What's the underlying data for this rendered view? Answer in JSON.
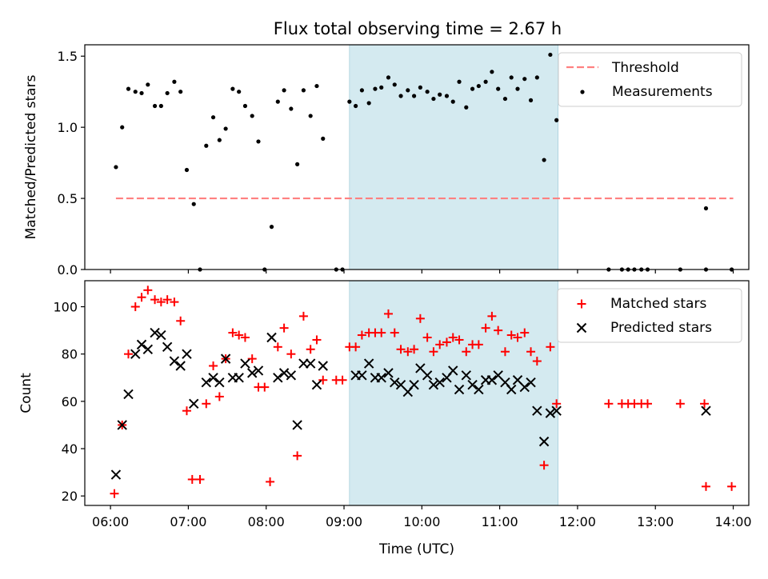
{
  "figure": {
    "title": "Flux total observing time = 2.67 h"
  },
  "chart_data": [
    {
      "type": "scatter",
      "panel": "top",
      "ylabel": "Matched/Predicted stars",
      "xlabel": "",
      "ylim": [
        0,
        1.58
      ],
      "xlim": [
        5.67,
        14.2
      ],
      "yticks": [
        0.0,
        0.5,
        1.0,
        1.5
      ],
      "ytick_labels": [
        "0.0",
        "0.5",
        "1.0",
        "1.5"
      ],
      "shaded_interval": {
        "start": 9.07,
        "end": 11.75,
        "color": "#d4eaf0"
      },
      "threshold": {
        "name": "Threshold",
        "value": 0.5,
        "x_start": 6.07,
        "x_end": 14.0,
        "color": "#ff8080"
      },
      "legend": {
        "placement": "top-right",
        "entries": [
          "Threshold",
          "Measurements"
        ]
      },
      "series": [
        {
          "name": "Measurements",
          "color": "#000000",
          "points": [
            [
              6.07,
              0.72
            ],
            [
              6.15,
              1.0
            ],
            [
              6.23,
              1.27
            ],
            [
              6.32,
              1.25
            ],
            [
              6.4,
              1.24
            ],
            [
              6.48,
              1.3
            ],
            [
              6.57,
              1.15
            ],
            [
              6.65,
              1.15
            ],
            [
              6.73,
              1.24
            ],
            [
              6.82,
              1.32
            ],
            [
              6.9,
              1.25
            ],
            [
              6.98,
              0.7
            ],
            [
              7.07,
              0.46
            ],
            [
              7.15,
              0.0
            ],
            [
              7.23,
              0.87
            ],
            [
              7.32,
              1.07
            ],
            [
              7.4,
              0.91
            ],
            [
              7.48,
              0.99
            ],
            [
              7.57,
              1.27
            ],
            [
              7.65,
              1.25
            ],
            [
              7.73,
              1.15
            ],
            [
              7.82,
              1.08
            ],
            [
              7.9,
              0.9
            ],
            [
              7.98,
              0.0
            ],
            [
              8.07,
              0.3
            ],
            [
              8.15,
              1.18
            ],
            [
              8.23,
              1.26
            ],
            [
              8.32,
              1.13
            ],
            [
              8.4,
              0.74
            ],
            [
              8.48,
              1.26
            ],
            [
              8.57,
              1.08
            ],
            [
              8.65,
              1.29
            ],
            [
              8.73,
              0.92
            ],
            [
              8.9,
              0.0
            ],
            [
              8.98,
              0.0
            ],
            [
              9.07,
              1.18
            ],
            [
              9.15,
              1.15
            ],
            [
              9.23,
              1.26
            ],
            [
              9.32,
              1.17
            ],
            [
              9.4,
              1.27
            ],
            [
              9.48,
              1.28
            ],
            [
              9.57,
              1.35
            ],
            [
              9.65,
              1.3
            ],
            [
              9.73,
              1.22
            ],
            [
              9.82,
              1.26
            ],
            [
              9.9,
              1.22
            ],
            [
              9.98,
              1.28
            ],
            [
              10.07,
              1.25
            ],
            [
              10.15,
              1.2
            ],
            [
              10.23,
              1.23
            ],
            [
              10.32,
              1.22
            ],
            [
              10.4,
              1.18
            ],
            [
              10.48,
              1.32
            ],
            [
              10.57,
              1.14
            ],
            [
              10.65,
              1.27
            ],
            [
              10.73,
              1.29
            ],
            [
              10.82,
              1.32
            ],
            [
              10.9,
              1.39
            ],
            [
              10.98,
              1.27
            ],
            [
              11.07,
              1.2
            ],
            [
              11.15,
              1.35
            ],
            [
              11.23,
              1.27
            ],
            [
              11.32,
              1.34
            ],
            [
              11.4,
              1.19
            ],
            [
              11.48,
              1.35
            ],
            [
              11.57,
              0.77
            ],
            [
              11.65,
              1.51
            ],
            [
              11.73,
              1.05
            ],
            [
              12.4,
              0.0
            ],
            [
              12.57,
              0.0
            ],
            [
              12.65,
              0.0
            ],
            [
              12.73,
              0.0
            ],
            [
              12.82,
              0.0
            ],
            [
              12.9,
              0.0
            ],
            [
              13.32,
              0.0
            ],
            [
              13.65,
              0.43
            ],
            [
              13.65,
              0.0
            ],
            [
              13.98,
              0.0
            ]
          ]
        }
      ]
    },
    {
      "type": "scatter",
      "panel": "bottom",
      "xlabel": "Time (UTC)",
      "ylabel": "Count",
      "ylim": [
        16,
        111
      ],
      "xlim": [
        5.67,
        14.2
      ],
      "yticks": [
        20,
        40,
        60,
        80,
        100
      ],
      "ytick_labels": [
        "20",
        "40",
        "60",
        "80",
        "100"
      ],
      "xticks": [
        6,
        7,
        8,
        9,
        10,
        11,
        12,
        13,
        14
      ],
      "xtick_labels": [
        "06:00",
        "07:00",
        "08:00",
        "09:00",
        "10:00",
        "11:00",
        "12:00",
        "13:00",
        "14:00"
      ],
      "shaded_interval": {
        "start": 9.07,
        "end": 11.75,
        "color": "#d4eaf0"
      },
      "legend": {
        "placement": "top-right",
        "entries": [
          "Matched stars",
          "Predicted stars"
        ]
      },
      "series": [
        {
          "name": "Matched stars",
          "marker": "plus",
          "color": "#ff0000",
          "points": [
            [
              6.05,
              21
            ],
            [
              6.15,
              50
            ],
            [
              6.23,
              80
            ],
            [
              6.32,
              100
            ],
            [
              6.4,
              104
            ],
            [
              6.48,
              107
            ],
            [
              6.57,
              103
            ],
            [
              6.65,
              102
            ],
            [
              6.73,
              103
            ],
            [
              6.82,
              102
            ],
            [
              6.9,
              94
            ],
            [
              6.98,
              56
            ],
            [
              7.05,
              27
            ],
            [
              7.15,
              27
            ],
            [
              7.23,
              59
            ],
            [
              7.32,
              75
            ],
            [
              7.4,
              62
            ],
            [
              7.48,
              78
            ],
            [
              7.57,
              89
            ],
            [
              7.65,
              88
            ],
            [
              7.73,
              87
            ],
            [
              7.82,
              78
            ],
            [
              7.9,
              66
            ],
            [
              7.98,
              66
            ],
            [
              8.05,
              26
            ],
            [
              8.15,
              83
            ],
            [
              8.23,
              91
            ],
            [
              8.32,
              80
            ],
            [
              8.4,
              37
            ],
            [
              8.48,
              96
            ],
            [
              8.57,
              82
            ],
            [
              8.65,
              86
            ],
            [
              8.73,
              69
            ],
            [
              8.9,
              69
            ],
            [
              8.98,
              69
            ],
            [
              9.07,
              83
            ],
            [
              9.15,
              83
            ],
            [
              9.23,
              88
            ],
            [
              9.32,
              89
            ],
            [
              9.4,
              89
            ],
            [
              9.48,
              89
            ],
            [
              9.57,
              97
            ],
            [
              9.65,
              89
            ],
            [
              9.73,
              82
            ],
            [
              9.82,
              81
            ],
            [
              9.9,
              82
            ],
            [
              9.98,
              95
            ],
            [
              10.07,
              87
            ],
            [
              10.15,
              81
            ],
            [
              10.23,
              84
            ],
            [
              10.32,
              85
            ],
            [
              10.4,
              87
            ],
            [
              10.48,
              86
            ],
            [
              10.57,
              81
            ],
            [
              10.65,
              84
            ],
            [
              10.73,
              84
            ],
            [
              10.82,
              91
            ],
            [
              10.9,
              96
            ],
            [
              10.98,
              90
            ],
            [
              11.07,
              81
            ],
            [
              11.15,
              88
            ],
            [
              11.23,
              87
            ],
            [
              11.32,
              89
            ],
            [
              11.4,
              81
            ],
            [
              11.48,
              77
            ],
            [
              11.57,
              33
            ],
            [
              11.65,
              83
            ],
            [
              11.73,
              59
            ],
            [
              12.4,
              59
            ],
            [
              12.57,
              59
            ],
            [
              12.65,
              59
            ],
            [
              12.73,
              59
            ],
            [
              12.82,
              59
            ],
            [
              12.9,
              59
            ],
            [
              13.32,
              59
            ],
            [
              13.63,
              59
            ],
            [
              13.65,
              24
            ],
            [
              13.98,
              24
            ]
          ]
        },
        {
          "name": "Predicted stars",
          "marker": "x",
          "color": "#000000",
          "points": [
            [
              6.07,
              29
            ],
            [
              6.15,
              50
            ],
            [
              6.23,
              63
            ],
            [
              6.32,
              80
            ],
            [
              6.4,
              84
            ],
            [
              6.48,
              82
            ],
            [
              6.57,
              89
            ],
            [
              6.65,
              88
            ],
            [
              6.73,
              83
            ],
            [
              6.82,
              77
            ],
            [
              6.9,
              75
            ],
            [
              6.98,
              80
            ],
            [
              7.07,
              59
            ],
            [
              7.23,
              68
            ],
            [
              7.32,
              70
            ],
            [
              7.4,
              68
            ],
            [
              7.48,
              78
            ],
            [
              7.57,
              70
            ],
            [
              7.65,
              70
            ],
            [
              7.73,
              76
            ],
            [
              7.82,
              72
            ],
            [
              7.9,
              73
            ],
            [
              8.07,
              87
            ],
            [
              8.15,
              70
            ],
            [
              8.23,
              72
            ],
            [
              8.32,
              71
            ],
            [
              8.4,
              50
            ],
            [
              8.48,
              76
            ],
            [
              8.57,
              76
            ],
            [
              8.65,
              67
            ],
            [
              8.73,
              75
            ],
            [
              9.15,
              71
            ],
            [
              9.23,
              71
            ],
            [
              9.32,
              76
            ],
            [
              9.4,
              70
            ],
            [
              9.48,
              70
            ],
            [
              9.57,
              72
            ],
            [
              9.65,
              68
            ],
            [
              9.73,
              67
            ],
            [
              9.82,
              64
            ],
            [
              9.9,
              67
            ],
            [
              9.98,
              74
            ],
            [
              10.07,
              71
            ],
            [
              10.15,
              67
            ],
            [
              10.23,
              68
            ],
            [
              10.32,
              70
            ],
            [
              10.4,
              73
            ],
            [
              10.48,
              65
            ],
            [
              10.57,
              71
            ],
            [
              10.65,
              67
            ],
            [
              10.73,
              65
            ],
            [
              10.82,
              69
            ],
            [
              10.9,
              69
            ],
            [
              10.98,
              71
            ],
            [
              11.07,
              68
            ],
            [
              11.15,
              65
            ],
            [
              11.23,
              69
            ],
            [
              11.32,
              66
            ],
            [
              11.4,
              68
            ],
            [
              11.48,
              56
            ],
            [
              11.57,
              43
            ],
            [
              11.65,
              55
            ],
            [
              11.73,
              56
            ],
            [
              13.65,
              56
            ]
          ]
        }
      ]
    }
  ]
}
